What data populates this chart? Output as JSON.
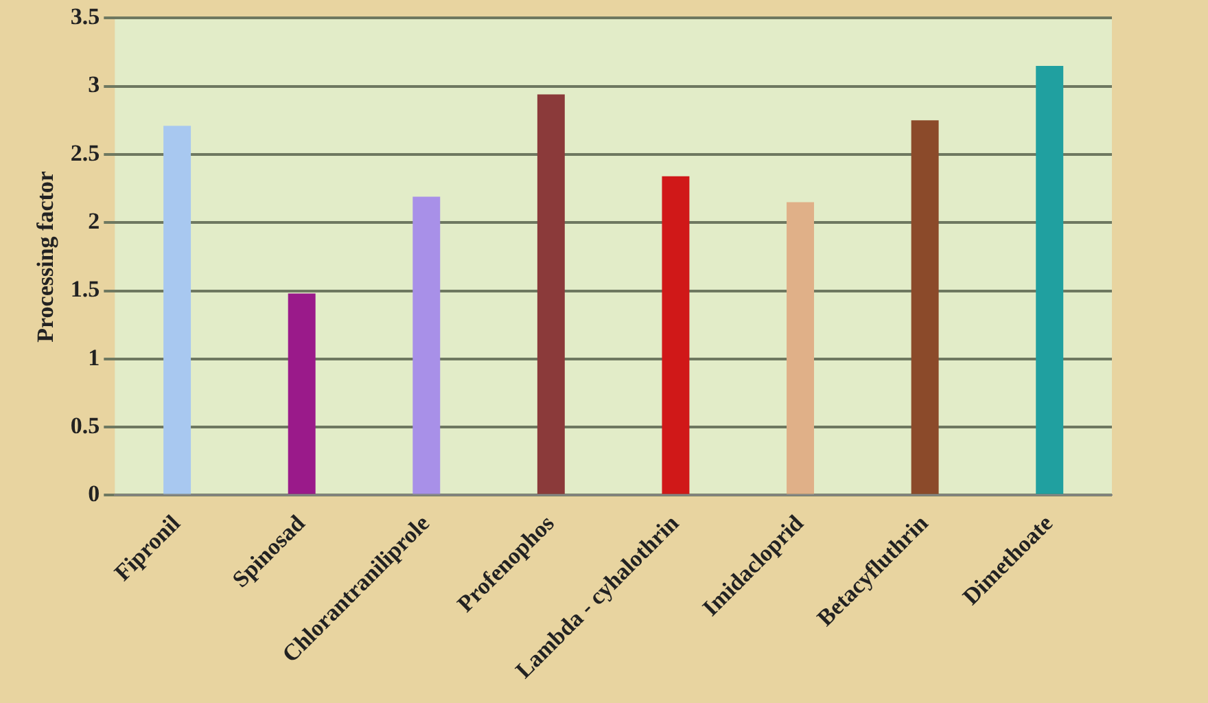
{
  "chart_data": {
    "type": "bar",
    "ylabel": "Processing factor",
    "categories": [
      "Fipronil",
      "Spinosad",
      "Chlorantraniliprole",
      "Profenophos",
      "Lambda - cyhalothrin",
      "Imidacloprid",
      "Betacyfluthrin",
      "Dimethoate"
    ],
    "values": [
      2.71,
      1.48,
      2.19,
      2.94,
      2.34,
      2.15,
      2.75,
      3.15
    ],
    "colors": [
      "#a8c8f0",
      "#9a1a8a",
      "#a890e8",
      "#8b3a3a",
      "#d01818",
      "#e0b088",
      "#8b4a2a",
      "#20a0a0"
    ],
    "ylim": [
      0,
      3.5
    ],
    "yticks": [
      0,
      0.5,
      1,
      1.5,
      2,
      2.5,
      3,
      3.5
    ],
    "grid": "y",
    "legend": false
  }
}
